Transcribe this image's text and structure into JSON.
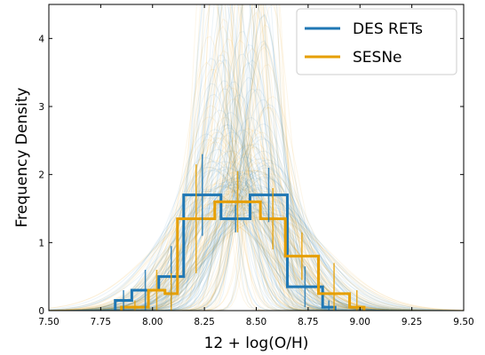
{
  "chart_data": {
    "type": "histogram",
    "xlabel": "12 + log(O/H)",
    "ylabel": "Frequency Density",
    "xlim": [
      7.5,
      9.5
    ],
    "ylim": [
      0,
      4.5
    ],
    "xticks": [
      "7.50",
      "7.75",
      "8.00",
      "8.25",
      "8.50",
      "8.75",
      "9.00",
      "9.25",
      "9.50"
    ],
    "xtick_values": [
      7.5,
      7.75,
      8.0,
      8.25,
      8.5,
      8.75,
      9.0,
      9.25,
      9.5
    ],
    "yticks": [
      "0",
      "1",
      "2",
      "3",
      "4"
    ],
    "ytick_values": [
      0,
      1,
      2,
      3,
      4
    ],
    "legend_position": "top-right",
    "colors": {
      "DES RETs": "#1f77b4",
      "SESNe": "#e69f00"
    },
    "series": [
      {
        "name": "DES RETs",
        "color": "#1f77b4",
        "bin_edges": [
          7.82,
          7.9,
          8.03,
          8.15,
          8.33,
          8.47,
          8.65,
          8.82,
          8.88
        ],
        "values": [
          0.15,
          0.3,
          0.5,
          1.7,
          1.35,
          1.7,
          0.35,
          0.05
        ],
        "errors": [
          0.15,
          0.3,
          0.45,
          0.6,
          0.2,
          0.4,
          0.3,
          0.1
        ],
        "kde_center": 8.41,
        "kde_spread": 0.2
      },
      {
        "name": "SESNe",
        "color": "#e69f00",
        "bin_edges": [
          7.85,
          7.98,
          8.06,
          8.12,
          8.3,
          8.52,
          8.64,
          8.8,
          8.95,
          9.02
        ],
        "values": [
          0.05,
          0.3,
          0.25,
          1.35,
          1.6,
          1.35,
          0.8,
          0.25,
          0.05
        ],
        "errors": [
          0.1,
          0.3,
          0.3,
          0.8,
          0.45,
          0.45,
          0.35,
          0.45,
          0.25
        ],
        "kde_center": 8.42,
        "kde_spread": 0.21
      }
    ]
  }
}
